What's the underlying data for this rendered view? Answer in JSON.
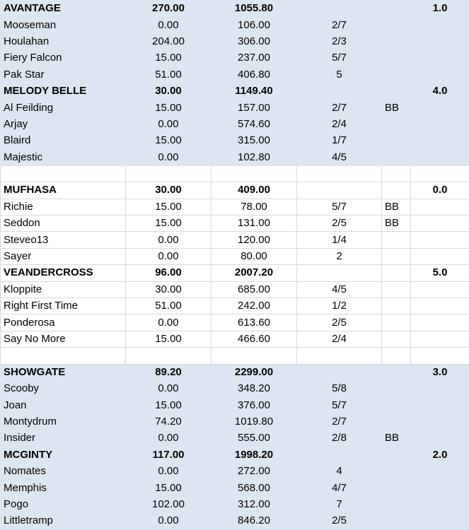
{
  "rows": [
    {
      "type": "team",
      "bg": "blue",
      "cells": [
        "AVANTAGE",
        "270.00",
        "1055.80",
        "",
        "",
        "1.0"
      ]
    },
    {
      "type": "player",
      "bg": "blue",
      "cells": [
        "Mooseman",
        "0.00",
        "106.00",
        "2/7",
        "",
        ""
      ]
    },
    {
      "type": "player",
      "bg": "blue",
      "cells": [
        "Houlahan",
        "204.00",
        "306.00",
        "2/3",
        "",
        ""
      ]
    },
    {
      "type": "player",
      "bg": "blue",
      "cells": [
        "Fiery Falcon",
        "15.00",
        "237.00",
        "5/7",
        "",
        ""
      ]
    },
    {
      "type": "player",
      "bg": "blue",
      "cells": [
        "Pak Star",
        "51.00",
        "406.80",
        "5",
        "",
        ""
      ]
    },
    {
      "type": "team",
      "bg": "blue",
      "cells": [
        "MELODY BELLE",
        "30.00",
        "1149.40",
        "",
        "",
        "4.0"
      ]
    },
    {
      "type": "player",
      "bg": "blue",
      "cells": [
        "Al Feilding",
        "15.00",
        "157.00",
        "2/7",
        "BB",
        ""
      ]
    },
    {
      "type": "player",
      "bg": "blue",
      "cells": [
        "Arjay",
        "0.00",
        "574.60",
        "2/4",
        "",
        ""
      ]
    },
    {
      "type": "player",
      "bg": "blue",
      "cells": [
        "Blaird",
        "15.00",
        "315.00",
        "1/7",
        "",
        ""
      ]
    },
    {
      "type": "player",
      "bg": "blue",
      "cells": [
        "Majestic",
        "0.00",
        "102.80",
        "4/5",
        "",
        ""
      ]
    },
    {
      "type": "spacer",
      "bg": "white",
      "cells": [
        "",
        "",
        "",
        "",
        "",
        ""
      ]
    },
    {
      "type": "team",
      "bg": "white",
      "cells": [
        "MUFHASA",
        "30.00",
        "409.00",
        "",
        "",
        "0.0"
      ]
    },
    {
      "type": "player",
      "bg": "white",
      "cells": [
        "Richie",
        "15.00",
        "78.00",
        "5/7",
        "BB",
        ""
      ]
    },
    {
      "type": "player",
      "bg": "white",
      "cells": [
        "Seddon",
        "15.00",
        "131.00",
        "2/5",
        "BB",
        ""
      ]
    },
    {
      "type": "player",
      "bg": "white",
      "cells": [
        "Steveo13",
        "0.00",
        "120.00",
        "1/4",
        "",
        ""
      ]
    },
    {
      "type": "player",
      "bg": "white",
      "cells": [
        "Sayer",
        "0.00",
        "80.00",
        "2",
        "",
        ""
      ]
    },
    {
      "type": "team",
      "bg": "white",
      "cells": [
        "VEANDERCROSS",
        "96.00",
        "2007.20",
        "",
        "",
        "5.0"
      ]
    },
    {
      "type": "player",
      "bg": "white",
      "cells": [
        "Kloppite",
        "30.00",
        "685.00",
        "4/5",
        "",
        ""
      ]
    },
    {
      "type": "player",
      "bg": "white",
      "cells": [
        "Right First Time",
        "51.00",
        "242.00",
        "1/2",
        "",
        ""
      ]
    },
    {
      "type": "player",
      "bg": "white",
      "cells": [
        "Ponderosa",
        "0.00",
        "613.60",
        "2/5",
        "",
        ""
      ]
    },
    {
      "type": "player",
      "bg": "white",
      "cells": [
        "Say No More",
        "15.00",
        "466.60",
        "2/4",
        "",
        ""
      ]
    },
    {
      "type": "spacer",
      "bg": "white",
      "cells": [
        "",
        "",
        "",
        "",
        "",
        ""
      ]
    },
    {
      "type": "team",
      "bg": "blue",
      "cells": [
        "SHOWGATE",
        "89.20",
        "2299.00",
        "",
        "",
        "3.0"
      ]
    },
    {
      "type": "player",
      "bg": "blue",
      "cells": [
        "Scooby",
        "0.00",
        "348.20",
        "5/8",
        "",
        ""
      ]
    },
    {
      "type": "player",
      "bg": "blue",
      "cells": [
        "Joan",
        "15.00",
        "376.00",
        "5/7",
        "",
        ""
      ]
    },
    {
      "type": "player",
      "bg": "blue",
      "cells": [
        "Montydrum",
        "74.20",
        "1019.80",
        "2/7",
        "",
        ""
      ]
    },
    {
      "type": "player",
      "bg": "blue",
      "cells": [
        "Insider",
        "0.00",
        "555.00",
        "2/8",
        "BB",
        ""
      ]
    },
    {
      "type": "team",
      "bg": "blue",
      "cells": [
        "MCGINTY",
        "117.00",
        "1998.20",
        "",
        "",
        "2.0"
      ]
    },
    {
      "type": "player",
      "bg": "blue",
      "cells": [
        "Nomates",
        "0.00",
        "272.00",
        "4",
        "",
        ""
      ]
    },
    {
      "type": "player",
      "bg": "blue",
      "cells": [
        "Memphis",
        "15.00",
        "568.00",
        "4/7",
        "",
        ""
      ]
    },
    {
      "type": "player",
      "bg": "blue",
      "cells": [
        "Pogo",
        "102.00",
        "312.00",
        "7",
        "",
        ""
      ]
    },
    {
      "type": "player",
      "bg": "blue",
      "cells": [
        "Littletramp",
        "0.00",
        "846.20",
        "2/5",
        "",
        ""
      ]
    }
  ]
}
